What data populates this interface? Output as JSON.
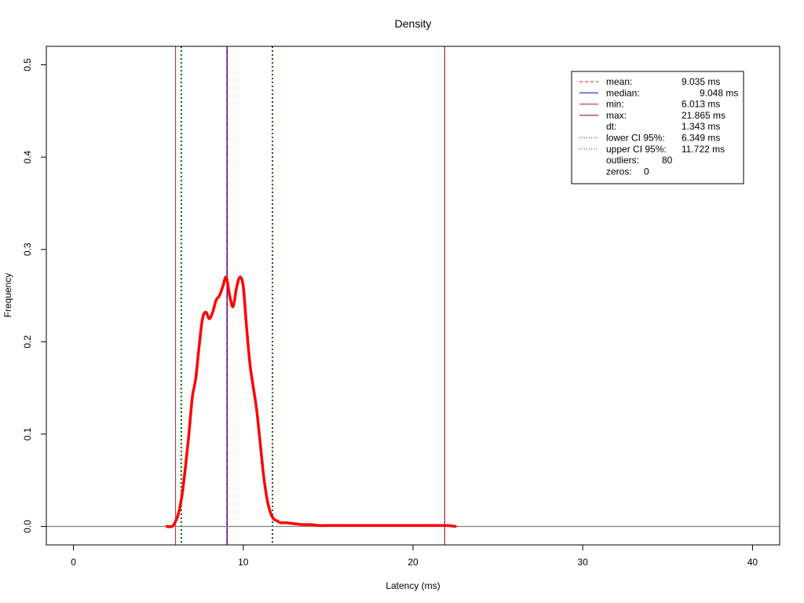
{
  "chart_data": {
    "type": "line",
    "title": "Density",
    "xlabel": "Latency (ms)",
    "ylabel": "Frequency",
    "xlim": [
      -1.6,
      41.6
    ],
    "ylim": [
      -0.02,
      0.52
    ],
    "x_ticks": [
      0,
      10,
      20,
      30,
      40
    ],
    "y_ticks": [
      0.0,
      0.1,
      0.2,
      0.3,
      0.4,
      0.5
    ],
    "x_tick_labels": [
      "0",
      "10",
      "20",
      "30",
      "40"
    ],
    "y_tick_labels": [
      "0.0",
      "0.1",
      "0.2",
      "0.3",
      "0.4",
      "0.5"
    ],
    "grid": false,
    "legend_position": "top-right",
    "colors": {
      "density": "#ff0000",
      "mean": "#ff0000",
      "median": "#0000cd",
      "min": "#b22222",
      "max": "#8b0000",
      "ci": "#006400",
      "baseline": "#808080"
    },
    "density": {
      "x": [
        5.5,
        5.8,
        6.0,
        6.2,
        6.4,
        6.6,
        6.8,
        7.0,
        7.2,
        7.4,
        7.6,
        7.8,
        8.0,
        8.2,
        8.4,
        8.6,
        8.8,
        9.0,
        9.2,
        9.4,
        9.6,
        9.8,
        10.0,
        10.2,
        10.4,
        10.6,
        10.8,
        11.0,
        11.2,
        11.4,
        11.6,
        11.8,
        12.0,
        12.2,
        12.5,
        13.0,
        13.5,
        14.0,
        14.5,
        15.0,
        16.0,
        17.0,
        18.0,
        19.0,
        20.0,
        21.0,
        22.0,
        22.5
      ],
      "y": [
        0.0,
        0.0,
        0.005,
        0.015,
        0.035,
        0.065,
        0.1,
        0.14,
        0.16,
        0.195,
        0.225,
        0.232,
        0.225,
        0.232,
        0.245,
        0.25,
        0.26,
        0.27,
        0.25,
        0.238,
        0.258,
        0.27,
        0.26,
        0.215,
        0.175,
        0.15,
        0.125,
        0.09,
        0.055,
        0.03,
        0.015,
        0.008,
        0.006,
        0.004,
        0.004,
        0.003,
        0.002,
        0.002,
        0.001,
        0.001,
        0.001,
        0.001,
        0.001,
        0.001,
        0.001,
        0.001,
        0.001,
        0.0
      ]
    },
    "reference_lines": [
      {
        "name": "mean",
        "x": 9.035,
        "style": "dashed"
      },
      {
        "name": "median",
        "x": 9.048,
        "style": "solid"
      },
      {
        "name": "min",
        "x": 6.013,
        "style": "solid"
      },
      {
        "name": "max",
        "x": 21.865,
        "style": "solid"
      },
      {
        "name": "lower CI 95%",
        "x": 6.349,
        "style": "dotted"
      },
      {
        "name": "upper CI 95%",
        "x": 11.722,
        "style": "dotted"
      }
    ],
    "legend": [
      {
        "key": "mean",
        "label": "mean:",
        "value": "9.035 ms",
        "symbol": "dashed",
        "color": "#ff0000"
      },
      {
        "key": "median",
        "label": "median:",
        "value": "9.048 ms",
        "symbol": "solid",
        "color": "#0000cd"
      },
      {
        "key": "min",
        "label": "min:",
        "value": "6.013 ms",
        "symbol": "solid",
        "color": "#b22222"
      },
      {
        "key": "max",
        "label": "max:",
        "value": "21.865 ms",
        "symbol": "solid",
        "color": "#8b0000"
      },
      {
        "key": "dt",
        "label": "dt:",
        "value": "1.343 ms",
        "symbol": "none",
        "color": ""
      },
      {
        "key": "lower-ci",
        "label": "lower CI 95%:",
        "value": "6.349 ms",
        "symbol": "dotted",
        "color": "#006400"
      },
      {
        "key": "upper-ci",
        "label": "upper CI 95%:",
        "value": "11.722 ms",
        "symbol": "dotted",
        "color": "#006400"
      },
      {
        "key": "outliers",
        "label": "outliers:",
        "value": "80",
        "symbol": "none",
        "color": ""
      },
      {
        "key": "zeros",
        "label": "zeros:",
        "value": "0",
        "symbol": "none",
        "color": ""
      }
    ]
  }
}
